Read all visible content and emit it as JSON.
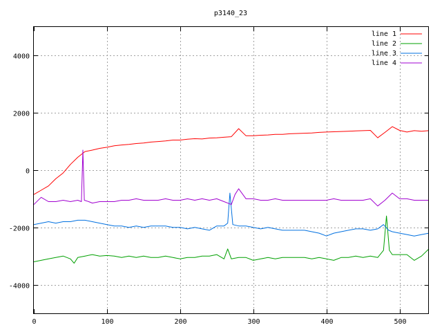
{
  "chart_data": {
    "type": "line",
    "title": "p3140_23",
    "xlabel": "",
    "ylabel": "",
    "xlim": [
      0,
      540
    ],
    "ylim": [
      -5000,
      5000
    ],
    "x_ticks": [
      0,
      100,
      200,
      300,
      400,
      500
    ],
    "y_ticks": [
      -4000,
      -2000,
      0,
      2000,
      4000
    ],
    "grid": true,
    "legend_placement": "top-right",
    "series": [
      {
        "name": "line 1",
        "color": "#ff0000",
        "points": [
          [
            0,
            -850
          ],
          [
            10,
            -700
          ],
          [
            20,
            -550
          ],
          [
            30,
            -300
          ],
          [
            40,
            -100
          ],
          [
            50,
            200
          ],
          [
            60,
            450
          ],
          [
            70,
            650
          ],
          [
            80,
            700
          ],
          [
            90,
            760
          ],
          [
            100,
            800
          ],
          [
            110,
            850
          ],
          [
            120,
            880
          ],
          [
            130,
            900
          ],
          [
            140,
            930
          ],
          [
            150,
            950
          ],
          [
            160,
            980
          ],
          [
            170,
            1000
          ],
          [
            180,
            1020
          ],
          [
            190,
            1050
          ],
          [
            200,
            1050
          ],
          [
            210,
            1080
          ],
          [
            220,
            1100
          ],
          [
            230,
            1090
          ],
          [
            240,
            1120
          ],
          [
            250,
            1130
          ],
          [
            260,
            1150
          ],
          [
            270,
            1170
          ],
          [
            280,
            1450
          ],
          [
            290,
            1200
          ],
          [
            300,
            1200
          ],
          [
            310,
            1220
          ],
          [
            320,
            1230
          ],
          [
            330,
            1250
          ],
          [
            340,
            1250
          ],
          [
            350,
            1270
          ],
          [
            360,
            1280
          ],
          [
            370,
            1290
          ],
          [
            380,
            1300
          ],
          [
            390,
            1320
          ],
          [
            400,
            1330
          ],
          [
            410,
            1340
          ],
          [
            420,
            1350
          ],
          [
            430,
            1360
          ],
          [
            440,
            1370
          ],
          [
            450,
            1380
          ],
          [
            460,
            1390
          ],
          [
            470,
            1130
          ],
          [
            480,
            1320
          ],
          [
            490,
            1520
          ],
          [
            500,
            1390
          ],
          [
            510,
            1330
          ],
          [
            520,
            1380
          ],
          [
            530,
            1360
          ],
          [
            540,
            1380
          ]
        ]
      },
      {
        "name": "line 2",
        "color": "#00a000",
        "points": [
          [
            0,
            -3200
          ],
          [
            10,
            -3150
          ],
          [
            20,
            -3100
          ],
          [
            30,
            -3050
          ],
          [
            40,
            -3000
          ],
          [
            50,
            -3100
          ],
          [
            55,
            -3250
          ],
          [
            60,
            -3050
          ],
          [
            70,
            -3000
          ],
          [
            80,
            -2950
          ],
          [
            90,
            -3000
          ],
          [
            100,
            -2980
          ],
          [
            110,
            -3000
          ],
          [
            120,
            -3050
          ],
          [
            130,
            -3000
          ],
          [
            140,
            -3050
          ],
          [
            150,
            -3000
          ],
          [
            160,
            -3050
          ],
          [
            170,
            -3050
          ],
          [
            180,
            -3000
          ],
          [
            190,
            -3050
          ],
          [
            200,
            -3100
          ],
          [
            210,
            -3050
          ],
          [
            220,
            -3050
          ],
          [
            230,
            -3000
          ],
          [
            240,
            -3000
          ],
          [
            250,
            -2950
          ],
          [
            260,
            -3100
          ],
          [
            265,
            -2750
          ],
          [
            270,
            -3100
          ],
          [
            280,
            -3050
          ],
          [
            290,
            -3050
          ],
          [
            300,
            -3150
          ],
          [
            310,
            -3100
          ],
          [
            320,
            -3050
          ],
          [
            330,
            -3100
          ],
          [
            340,
            -3050
          ],
          [
            350,
            -3050
          ],
          [
            360,
            -3050
          ],
          [
            370,
            -3050
          ],
          [
            380,
            -3100
          ],
          [
            390,
            -3050
          ],
          [
            400,
            -3100
          ],
          [
            410,
            -3150
          ],
          [
            420,
            -3050
          ],
          [
            430,
            -3050
          ],
          [
            440,
            -3000
          ],
          [
            450,
            -3050
          ],
          [
            460,
            -3000
          ],
          [
            470,
            -3050
          ],
          [
            478,
            -2800
          ],
          [
            482,
            -1600
          ],
          [
            486,
            -2800
          ],
          [
            490,
            -2950
          ],
          [
            500,
            -2950
          ],
          [
            510,
            -2950
          ],
          [
            520,
            -3150
          ],
          [
            530,
            -3000
          ],
          [
            540,
            -2750
          ]
        ]
      },
      {
        "name": "line 3",
        "color": "#0070e0",
        "points": [
          [
            0,
            -1900
          ],
          [
            10,
            -1850
          ],
          [
            20,
            -1800
          ],
          [
            30,
            -1850
          ],
          [
            40,
            -1800
          ],
          [
            50,
            -1800
          ],
          [
            60,
            -1750
          ],
          [
            70,
            -1750
          ],
          [
            80,
            -1800
          ],
          [
            90,
            -1850
          ],
          [
            100,
            -1900
          ],
          [
            110,
            -1950
          ],
          [
            120,
            -1950
          ],
          [
            130,
            -2000
          ],
          [
            140,
            -1950
          ],
          [
            150,
            -2000
          ],
          [
            160,
            -1950
          ],
          [
            170,
            -1950
          ],
          [
            180,
            -1950
          ],
          [
            190,
            -2000
          ],
          [
            200,
            -2000
          ],
          [
            210,
            -2050
          ],
          [
            220,
            -2000
          ],
          [
            230,
            -2050
          ],
          [
            240,
            -2100
          ],
          [
            250,
            -1950
          ],
          [
            260,
            -1950
          ],
          [
            265,
            -1850
          ],
          [
            268,
            -800
          ],
          [
            272,
            -1900
          ],
          [
            280,
            -1950
          ],
          [
            290,
            -1950
          ],
          [
            300,
            -2000
          ],
          [
            310,
            -2050
          ],
          [
            320,
            -2000
          ],
          [
            330,
            -2050
          ],
          [
            340,
            -2100
          ],
          [
            350,
            -2100
          ],
          [
            360,
            -2100
          ],
          [
            370,
            -2100
          ],
          [
            380,
            -2150
          ],
          [
            390,
            -2200
          ],
          [
            400,
            -2300
          ],
          [
            410,
            -2200
          ],
          [
            420,
            -2150
          ],
          [
            430,
            -2100
          ],
          [
            440,
            -2050
          ],
          [
            450,
            -2050
          ],
          [
            460,
            -2100
          ],
          [
            470,
            -2050
          ],
          [
            478,
            -1900
          ],
          [
            485,
            -2100
          ],
          [
            490,
            -2150
          ],
          [
            500,
            -2200
          ],
          [
            510,
            -2250
          ],
          [
            520,
            -2300
          ],
          [
            530,
            -2250
          ],
          [
            540,
            -2200
          ]
        ]
      },
      {
        "name": "line 4",
        "color": "#a000d0",
        "points": [
          [
            0,
            -1200
          ],
          [
            10,
            -950
          ],
          [
            20,
            -1100
          ],
          [
            30,
            -1100
          ],
          [
            40,
            -1050
          ],
          [
            50,
            -1100
          ],
          [
            60,
            -1050
          ],
          [
            65,
            -1100
          ],
          [
            67,
            700
          ],
          [
            69,
            -1050
          ],
          [
            75,
            -1100
          ],
          [
            80,
            -1150
          ],
          [
            90,
            -1100
          ],
          [
            100,
            -1100
          ],
          [
            110,
            -1100
          ],
          [
            120,
            -1050
          ],
          [
            130,
            -1050
          ],
          [
            140,
            -1000
          ],
          [
            150,
            -1050
          ],
          [
            160,
            -1050
          ],
          [
            170,
            -1050
          ],
          [
            180,
            -1000
          ],
          [
            190,
            -1050
          ],
          [
            200,
            -1050
          ],
          [
            210,
            -1000
          ],
          [
            220,
            -1050
          ],
          [
            230,
            -1000
          ],
          [
            240,
            -1050
          ],
          [
            250,
            -1000
          ],
          [
            260,
            -1100
          ],
          [
            270,
            -1200
          ],
          [
            275,
            -850
          ],
          [
            280,
            -650
          ],
          [
            290,
            -1000
          ],
          [
            300,
            -1000
          ],
          [
            310,
            -1050
          ],
          [
            320,
            -1050
          ],
          [
            330,
            -1000
          ],
          [
            340,
            -1050
          ],
          [
            350,
            -1050
          ],
          [
            360,
            -1050
          ],
          [
            370,
            -1050
          ],
          [
            380,
            -1050
          ],
          [
            390,
            -1050
          ],
          [
            400,
            -1050
          ],
          [
            410,
            -1000
          ],
          [
            420,
            -1050
          ],
          [
            430,
            -1050
          ],
          [
            440,
            -1050
          ],
          [
            450,
            -1050
          ],
          [
            460,
            -1000
          ],
          [
            470,
            -1250
          ],
          [
            480,
            -1050
          ],
          [
            490,
            -800
          ],
          [
            500,
            -1000
          ],
          [
            510,
            -1000
          ],
          [
            520,
            -1050
          ],
          [
            530,
            -1050
          ],
          [
            540,
            -1050
          ]
        ]
      }
    ]
  }
}
